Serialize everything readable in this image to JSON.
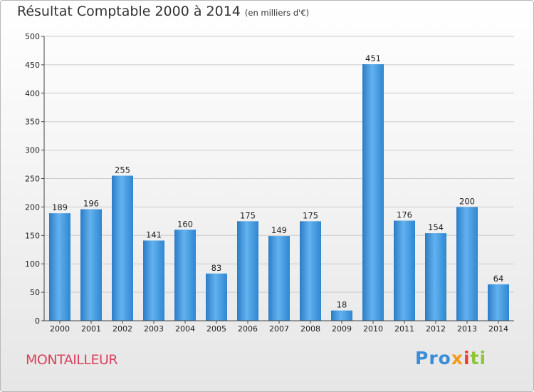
{
  "chart_data": {
    "type": "bar",
    "title": "Résultat Comptable 2000 à 2014",
    "subtitle": "(en milliers d'€)",
    "categories": [
      "2000",
      "2001",
      "2002",
      "2003",
      "2004",
      "2005",
      "2006",
      "2007",
      "2008",
      "2009",
      "2010",
      "2011",
      "2012",
      "2013",
      "2014"
    ],
    "values": [
      189,
      196,
      255,
      141,
      160,
      83,
      175,
      149,
      175,
      18,
      451,
      176,
      154,
      200,
      64
    ],
    "ylim": [
      0,
      500
    ],
    "yticks": [
      0,
      50,
      100,
      150,
      200,
      250,
      300,
      350,
      400,
      450,
      500
    ],
    "grid": true,
    "xlabel": "",
    "ylabel": "",
    "bar_color": "#3a8fd8"
  },
  "commune": "MONTAILLEUR",
  "logo": {
    "p1": "Pro",
    "p2": "x",
    "p3": "i",
    "p4": "ti"
  },
  "colors": {
    "commune": "#d8435e",
    "grid": "#cccccc"
  }
}
